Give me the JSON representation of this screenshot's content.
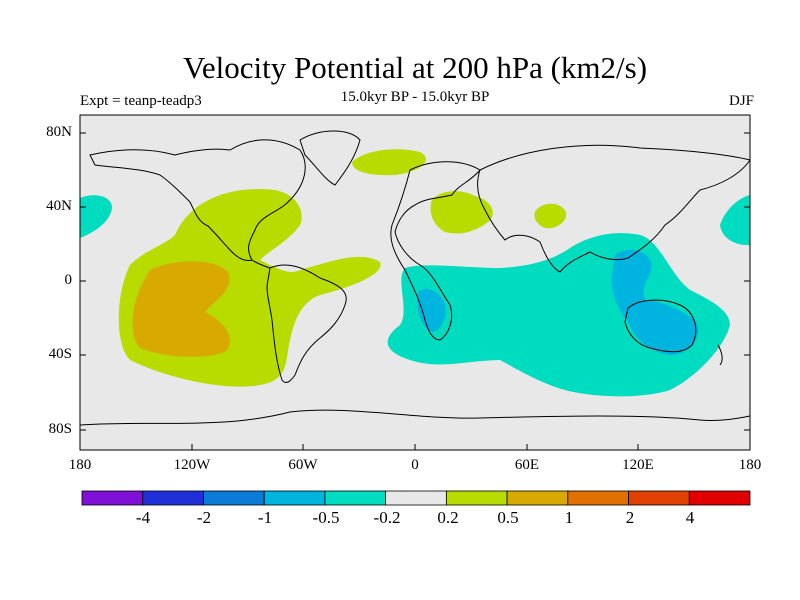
{
  "title": "Velocity Potential at 200 hPa (km2/s)",
  "subtitle": "15.0kyr BP - 15.0kyr BP",
  "left_string": "Expt = teanp-teadp3",
  "right_string": "DJF",
  "map": {
    "projection": "cylindrical equidistant",
    "background_color": "#e8e8e8",
    "lat_ticks": [
      "80N",
      "40N",
      "0",
      "40S",
      "80S"
    ],
    "lon_ticks": [
      "180",
      "120W",
      "60W",
      "0",
      "60E",
      "120E",
      "180"
    ]
  },
  "colorbar": {
    "colors": [
      "#7f10d8",
      "#2030d8",
      "#0a7cd8",
      "#00b4e0",
      "#00dcc0",
      "#e8e8e8",
      "#b8dc00",
      "#d8aa00",
      "#e07000",
      "#e04000",
      "#e00000"
    ],
    "labels": [
      "-4",
      "-2",
      "-1",
      "-0.5",
      "-0.2",
      "0.2",
      "0.5",
      "1",
      "2",
      "4"
    ]
  }
}
